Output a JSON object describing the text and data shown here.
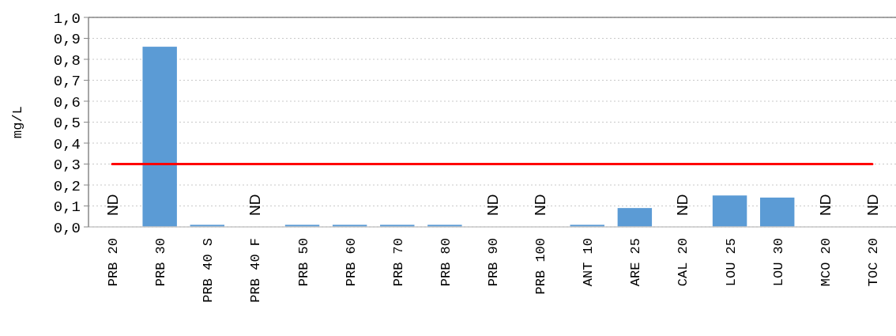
{
  "chart_data": {
    "type": "bar",
    "ylabel": "mg/L",
    "categories": [
      "PRB 20",
      "PRB 30",
      "PRB 40 S",
      "PRB 40 F",
      "PRB 50",
      "PRB 60",
      "PRB 70",
      "PRB 80",
      "PRB 90",
      "PRB 100",
      "ANT 10",
      "ARE 25",
      "CAL 20",
      "LOU 25",
      "LOU 30",
      "MCO 20",
      "TOC 20"
    ],
    "values": [
      null,
      0.86,
      0.01,
      null,
      0.01,
      0.01,
      0.01,
      0.01,
      null,
      null,
      0.01,
      0.09,
      null,
      0.15,
      0.14,
      null,
      null
    ],
    "value_labels": [
      "ND",
      null,
      null,
      "ND",
      null,
      null,
      null,
      null,
      "ND",
      "ND",
      null,
      null,
      "ND",
      null,
      null,
      "ND",
      "ND"
    ],
    "color": "#5b9bd5",
    "ylim": [
      0,
      1.0
    ],
    "yticks": [
      {
        "value": 0,
        "label": "0,0"
      },
      {
        "value": 0.1,
        "label": "0,1"
      },
      {
        "value": 0.2,
        "label": "0,2"
      },
      {
        "value": 0.3,
        "label": "0,3"
      },
      {
        "value": 0.4,
        "label": "0,4"
      },
      {
        "value": 0.5,
        "label": "0,5"
      },
      {
        "value": 0.6,
        "label": "0,6"
      },
      {
        "value": 0.7,
        "label": "0,7"
      },
      {
        "value": 0.8,
        "label": "0,8"
      },
      {
        "value": 0.9,
        "label": "0,9"
      },
      {
        "value": 1.0,
        "label": "1,0"
      }
    ],
    "grid": "y",
    "ref_lines": [
      {
        "axis": "y",
        "value": 0.3,
        "color": "#ff0000"
      }
    ]
  }
}
